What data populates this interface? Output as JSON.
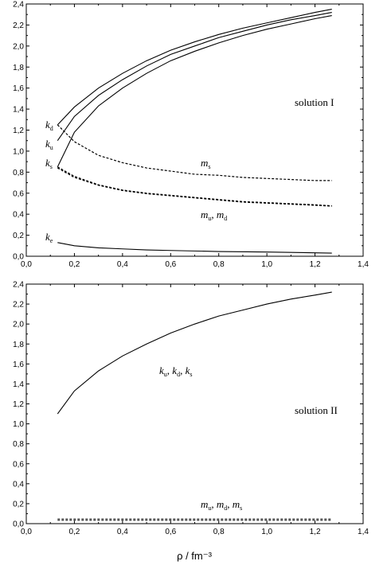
{
  "chart_data": [
    {
      "type": "line",
      "xlim": [
        0,
        1.4
      ],
      "ylim": [
        0,
        2.4
      ],
      "x_ticks": [
        "0,0",
        "0,2",
        "0,4",
        "0,6",
        "0,8",
        "1,0",
        "1,2",
        "1,4"
      ],
      "y_ticks": [
        "0,0",
        "0,2",
        "0,4",
        "0,6",
        "0,8",
        "1,0",
        "1,2",
        "1,4",
        "1,6",
        "1,8",
        "2,0",
        "2,2",
        "2,4"
      ],
      "label": "solution I",
      "series": [
        {
          "name": "k_d",
          "style": "solid",
          "x": [
            0.13,
            0.2,
            0.3,
            0.4,
            0.5,
            0.6,
            0.7,
            0.8,
            0.9,
            1.0,
            1.1,
            1.2,
            1.27
          ],
          "y": [
            1.25,
            1.42,
            1.6,
            1.74,
            1.86,
            1.96,
            2.04,
            2.11,
            2.17,
            2.22,
            2.27,
            2.32,
            2.35
          ]
        },
        {
          "name": "k_u",
          "style": "solid",
          "x": [
            0.13,
            0.2,
            0.3,
            0.4,
            0.5,
            0.6,
            0.7,
            0.8,
            0.9,
            1.0,
            1.1,
            1.2,
            1.27
          ],
          "y": [
            1.1,
            1.33,
            1.53,
            1.68,
            1.81,
            1.92,
            2.0,
            2.08,
            2.14,
            2.2,
            2.25,
            2.29,
            2.32
          ]
        },
        {
          "name": "k_s",
          "style": "solid",
          "x": [
            0.13,
            0.2,
            0.3,
            0.4,
            0.5,
            0.6,
            0.7,
            0.8,
            0.9,
            1.0,
            1.1,
            1.2,
            1.27
          ],
          "y": [
            0.85,
            1.18,
            1.43,
            1.6,
            1.74,
            1.86,
            1.95,
            2.03,
            2.1,
            2.16,
            2.21,
            2.26,
            2.29
          ]
        },
        {
          "name": "k_e",
          "style": "solid",
          "x": [
            0.13,
            0.2,
            0.3,
            0.4,
            0.5,
            0.6,
            0.8,
            1.0,
            1.27
          ],
          "y": [
            0.13,
            0.1,
            0.08,
            0.07,
            0.06,
            0.055,
            0.045,
            0.04,
            0.03
          ]
        },
        {
          "name": "m_s",
          "style": "dashed",
          "x": [
            0.13,
            0.2,
            0.3,
            0.4,
            0.5,
            0.6,
            0.7,
            0.8,
            0.9,
            1.0,
            1.1,
            1.2,
            1.27
          ],
          "y": [
            1.25,
            1.09,
            0.96,
            0.89,
            0.84,
            0.81,
            0.78,
            0.77,
            0.75,
            0.74,
            0.73,
            0.72,
            0.72
          ]
        },
        {
          "name": "m_u",
          "style": "dashed",
          "x": [
            0.13,
            0.2,
            0.3,
            0.4,
            0.5,
            0.6,
            0.7,
            0.8,
            0.9,
            1.0,
            1.1,
            1.2,
            1.27
          ],
          "y": [
            0.85,
            0.76,
            0.68,
            0.63,
            0.6,
            0.58,
            0.56,
            0.54,
            0.52,
            0.51,
            0.5,
            0.49,
            0.48
          ]
        },
        {
          "name": "m_d",
          "style": "dashed",
          "x": [
            0.13,
            0.2,
            0.3,
            0.4,
            0.5,
            0.6,
            0.7,
            0.8,
            0.9,
            1.0,
            1.1,
            1.2,
            1.27
          ],
          "y": [
            0.84,
            0.75,
            0.675,
            0.625,
            0.595,
            0.575,
            0.555,
            0.535,
            0.515,
            0.505,
            0.495,
            0.485,
            0.477
          ]
        }
      ]
    },
    {
      "type": "line",
      "xlabel": "ρ / fm⁻³",
      "xlim": [
        0,
        1.4
      ],
      "ylim": [
        0,
        2.4
      ],
      "x_ticks": [
        "0,0",
        "0,2",
        "0,4",
        "0,6",
        "0,8",
        "1,0",
        "1,2",
        "1,4"
      ],
      "y_ticks": [
        "0,0",
        "0,2",
        "0,4",
        "0,6",
        "0,8",
        "1,0",
        "1,2",
        "1,4",
        "1,6",
        "1,8",
        "2,0",
        "2,2",
        "2,4"
      ],
      "label": "solution II",
      "series": [
        {
          "name": "k_u, k_d, k_s",
          "style": "solid",
          "x": [
            0.13,
            0.2,
            0.3,
            0.4,
            0.5,
            0.6,
            0.7,
            0.8,
            0.9,
            1.0,
            1.1,
            1.2,
            1.27
          ],
          "y": [
            1.1,
            1.33,
            1.53,
            1.68,
            1.8,
            1.91,
            2.0,
            2.08,
            2.14,
            2.2,
            2.25,
            2.29,
            2.32
          ]
        },
        {
          "name": "m_u, m_d, m_s",
          "style": "dashed",
          "x": [
            0.13,
            1.27
          ],
          "y": [
            0.04,
            0.04
          ]
        }
      ]
    }
  ]
}
